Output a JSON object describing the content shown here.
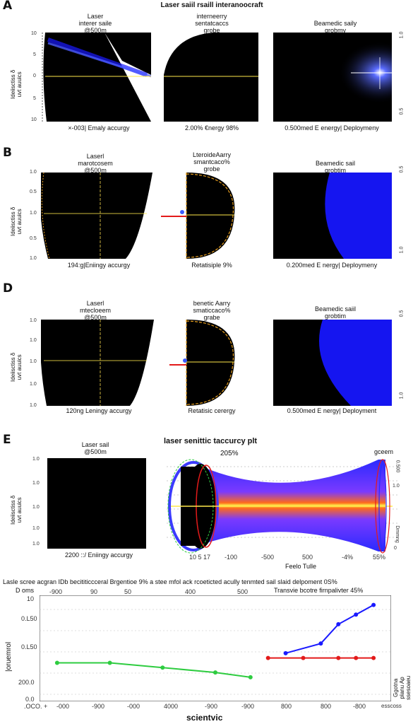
{
  "main_title": "Laser saiil rsaill interanoocraft",
  "row_a": {
    "letter": "A",
    "left_title": "Laser\ninterer saile\n@500m",
    "mid_title": "interneerry\nsentatcaccs\ngrobe",
    "right_title": "Beamedic saily\ngrobmy",
    "left_caption": "×-003| Emaly accurgy",
    "mid_caption": "2.00% €nergy 98%",
    "right_caption": "0.500med E energy| Deploymeny",
    "y_label": "Ideiisctiss δ\nuvt  auuics",
    "y_ticks": [
      "10",
      "5",
      "0",
      "5",
      "10"
    ],
    "right_ticks": [
      "1.0",
      "0.5"
    ]
  },
  "row_b": {
    "letter": "B",
    "left_title": "Laserl\nmarotcosem\n@500m",
    "mid_title": "LteroideAarry\nsmantcaco%\ngrobe",
    "right_title": "Beamedic sail\ngrobtim",
    "left_caption": "194:g|Eniingy accurgy",
    "mid_caption": "Retatisiple 9%",
    "right_caption": "0.200med E nergy| Deploymeny",
    "y_label": "Ideiisctiss δ\nuvt  auuics",
    "y_ticks": [
      "1.0",
      "0.5",
      "1.0",
      "0.5",
      "1.0"
    ],
    "right_ticks": [
      "0.5",
      "1.0"
    ]
  },
  "row_d": {
    "letter": "D",
    "left_title": "Laserl\nmtecloeem\n@500m",
    "mid_title": "benetic Aarry\nsmaticcaco%\ngrabe",
    "right_title": "Beamedic saiil\ngrobtim",
    "left_caption": "120ng Leningy accurgy",
    "mid_caption": "Retatisic cerergy",
    "right_caption": "0.500med E nergy| Deployment",
    "y_label": "Ideiisctiss δ\nuvt  auuics",
    "y_ticks": [
      "1.0",
      "1.0",
      "1.0",
      "1.0",
      "1.0"
    ],
    "right_ticks": [
      "0.5",
      "1.0"
    ]
  },
  "row_e": {
    "letter": "E",
    "left_title": "Laser sail\n@500m",
    "mid_title": "laser senittic taccurcy plt",
    "mid_subtitle": "205%",
    "right_title": "gceem",
    "left_caption": "2200 ::/ Eniingy accurgy",
    "x_ticks": [
      "10 5 17",
      "-100",
      "-500",
      "500",
      "-4%",
      "55%"
    ],
    "x_label": "Feelo Tulle",
    "y_label": "Ideiisctiss δ\nuvt  auuics",
    "y_ticks": [
      "1.0",
      "1.0",
      "1.0",
      "1.0",
      "1.0"
    ],
    "right_ticks": [
      "0.500",
      "1.0",
      "Dmmng",
      "0"
    ]
  },
  "bottom": {
    "title": "Lasle scree acgran  IDb becititiccceral Brgentioe 9%  a stee mfol ack rcoeticted acully tenmted sail slaid delpoment 0S%",
    "subtitle_left": "D oms",
    "subtitle_right": "Transvie bcotre firnpalivter 45%",
    "top_ticks": [
      "-900",
      "90",
      "50",
      "400",
      "500"
    ],
    "y_ticks": [
      "10",
      "0.L50",
      "0.L50",
      "200.0",
      "0.0"
    ],
    "x_ticks": [
      ".OCO. +",
      "-000",
      "-900",
      "-000",
      "4000",
      "-900",
      "-900",
      "800",
      "800",
      "-800",
      "esscoss"
    ],
    "x_label": "scientvic",
    "y_label": "|oruemrol",
    "right_label": "Ggotna planu Ap ssesoaeu"
  },
  "colors": {
    "beam_blue": "#1a1aff",
    "glow_yellow": "#ffe94a",
    "dash_orange": "#e8a020",
    "sail_red": "#e31a1a",
    "green": "#2ecc40"
  },
  "chart_data": {
    "type": "scatter",
    "title": "Laser saiil rsaill interanoocraft",
    "xlabel": "scientvic",
    "ylabel": "|oruemrol",
    "series": [
      {
        "color": "#1a1aff",
        "x": [
          400,
          600,
          700,
          800,
          900
        ],
        "y": [
          0.5,
          0.6,
          0.8,
          0.9,
          1.0
        ]
      },
      {
        "color": "#e31a1a",
        "x": [
          300,
          500,
          700,
          800,
          900
        ],
        "y": [
          0.45,
          0.45,
          0.45,
          0.45,
          0.45
        ]
      },
      {
        "color": "#2ecc40",
        "x": [
          -900,
          -600,
          -300,
          0,
          200
        ],
        "y": [
          0.4,
          0.4,
          0.35,
          0.3,
          0.25
        ]
      }
    ]
  }
}
